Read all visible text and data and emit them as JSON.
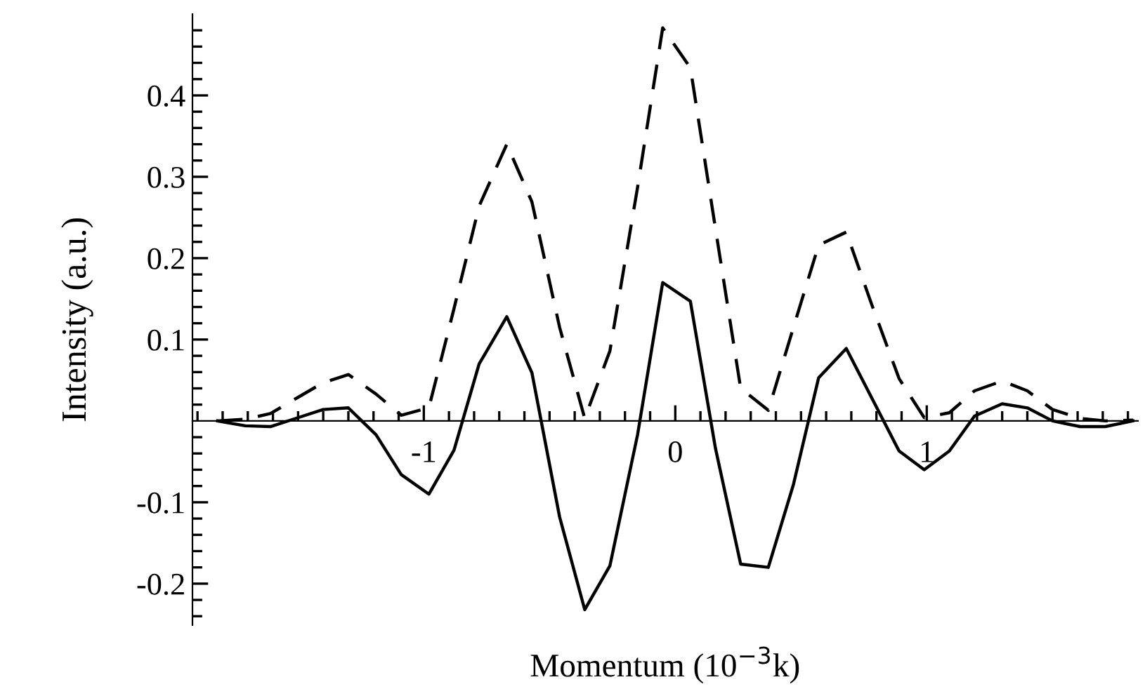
{
  "chart_data": {
    "type": "line",
    "xlabel": "Momentum (10$^{−3}$k)",
    "ylabel": "Intensity (a.u.)",
    "x": [
      -1.82,
      -1.71,
      -1.61,
      -1.5,
      -1.4,
      -1.3,
      -1.19,
      -1.09,
      -0.98,
      -0.88,
      -0.78,
      -0.67,
      -0.57,
      -0.46,
      -0.36,
      -0.26,
      -0.15,
      -0.05,
      0.06,
      0.16,
      0.26,
      0.37,
      0.47,
      0.57,
      0.68,
      0.78,
      0.89,
      0.99,
      1.09,
      1.19,
      1.3,
      1.4,
      1.5,
      1.61,
      1.71,
      1.82
    ],
    "series": [
      {
        "color": "#000000",
        "line_style": "dashed",
        "values": [
          0.0,
          0.002,
          0.009,
          0.029,
          0.047,
          0.057,
          0.033,
          0.007,
          0.016,
          0.138,
          0.264,
          0.34,
          0.269,
          0.115,
          0.003,
          0.086,
          0.287,
          0.483,
          0.434,
          0.236,
          0.04,
          0.013,
          0.115,
          0.216,
          0.232,
          0.144,
          0.052,
          0.004,
          0.01,
          0.037,
          0.049,
          0.037,
          0.014,
          0.003,
          0.0,
          0.001
        ]
      },
      {
        "color": "#000000",
        "line_style": "solid",
        "values": [
          0.0,
          -0.006,
          -0.007,
          0.004,
          0.014,
          0.016,
          -0.017,
          -0.066,
          -0.09,
          -0.036,
          0.07,
          0.128,
          0.059,
          -0.118,
          -0.232,
          -0.178,
          -0.017,
          0.17,
          0.147,
          -0.034,
          -0.176,
          -0.18,
          -0.078,
          0.053,
          0.089,
          0.029,
          -0.037,
          -0.06,
          -0.037,
          0.006,
          0.021,
          0.016,
          0.0,
          -0.007,
          -0.007,
          0.0
        ]
      }
    ],
    "xlim": [
      -1.92,
      1.84
    ],
    "ylim": [
      -0.251,
      0.5
    ],
    "xticks": [
      {
        "value": -1.9,
        "label": null
      },
      {
        "value": -1.8,
        "label": null
      },
      {
        "value": -1.7,
        "label": null
      },
      {
        "value": -1.6,
        "label": null
      },
      {
        "value": -1.5,
        "label": null
      },
      {
        "value": -1.4,
        "label": null
      },
      {
        "value": -1.3,
        "label": null
      },
      {
        "value": -1.2,
        "label": null
      },
      {
        "value": -1.1,
        "label": null
      },
      {
        "value": -1,
        "label": "-1"
      },
      {
        "value": -0.9,
        "label": null
      },
      {
        "value": -0.8,
        "label": null
      },
      {
        "value": -0.7,
        "label": null
      },
      {
        "value": -0.6,
        "label": null
      },
      {
        "value": -0.5,
        "label": null
      },
      {
        "value": -0.4,
        "label": null
      },
      {
        "value": -0.3,
        "label": null
      },
      {
        "value": -0.2,
        "label": null
      },
      {
        "value": -0.1,
        "label": null
      },
      {
        "value": 0,
        "label": "0"
      },
      {
        "value": 0.1,
        "label": null
      },
      {
        "value": 0.2,
        "label": null
      },
      {
        "value": 0.3,
        "label": null
      },
      {
        "value": 0.4,
        "label": null
      },
      {
        "value": 0.5,
        "label": null
      },
      {
        "value": 0.6,
        "label": null
      },
      {
        "value": 0.7,
        "label": null
      },
      {
        "value": 0.8,
        "label": null
      },
      {
        "value": 0.9,
        "label": null
      },
      {
        "value": 1,
        "label": "1"
      },
      {
        "value": 1.1,
        "label": null
      },
      {
        "value": 1.2,
        "label": null
      },
      {
        "value": 1.3,
        "label": null
      },
      {
        "value": 1.4,
        "label": null
      },
      {
        "value": 1.5,
        "label": null
      },
      {
        "value": 1.6,
        "label": null
      },
      {
        "value": 1.7,
        "label": null
      },
      {
        "value": 1.8,
        "label": null
      }
    ],
    "yticks": [
      {
        "value": -0.24,
        "label": null
      },
      {
        "value": -0.22,
        "label": null
      },
      {
        "value": -0.2,
        "label": "-0.2"
      },
      {
        "value": -0.18,
        "label": null
      },
      {
        "value": -0.16,
        "label": null
      },
      {
        "value": -0.14,
        "label": null
      },
      {
        "value": -0.12,
        "label": null
      },
      {
        "value": -0.1,
        "label": "-0.1"
      },
      {
        "value": -0.08,
        "label": null
      },
      {
        "value": -0.06,
        "label": null
      },
      {
        "value": -0.04,
        "label": null
      },
      {
        "value": -0.02,
        "label": null
      },
      {
        "value": 0.02,
        "label": null
      },
      {
        "value": 0.04,
        "label": null
      },
      {
        "value": 0.06,
        "label": null
      },
      {
        "value": 0.08,
        "label": null
      },
      {
        "value": 0.1,
        "label": "0.1"
      },
      {
        "value": 0.12,
        "label": null
      },
      {
        "value": 0.14,
        "label": null
      },
      {
        "value": 0.16,
        "label": null
      },
      {
        "value": 0.18,
        "label": null
      },
      {
        "value": 0.2,
        "label": "0.2"
      },
      {
        "value": 0.22,
        "label": null
      },
      {
        "value": 0.24,
        "label": null
      },
      {
        "value": 0.26,
        "label": null
      },
      {
        "value": 0.28,
        "label": null
      },
      {
        "value": 0.3,
        "label": "0.3"
      },
      {
        "value": 0.32,
        "label": null
      },
      {
        "value": 0.34,
        "label": null
      },
      {
        "value": 0.36,
        "label": null
      },
      {
        "value": 0.38,
        "label": null
      },
      {
        "value": 0.4,
        "label": "0.4"
      },
      {
        "value": 0.42,
        "label": null
      },
      {
        "value": 0.44,
        "label": null
      },
      {
        "value": 0.46,
        "label": null
      },
      {
        "value": 0.48,
        "label": null
      }
    ],
    "grid": false,
    "legend": false
  }
}
